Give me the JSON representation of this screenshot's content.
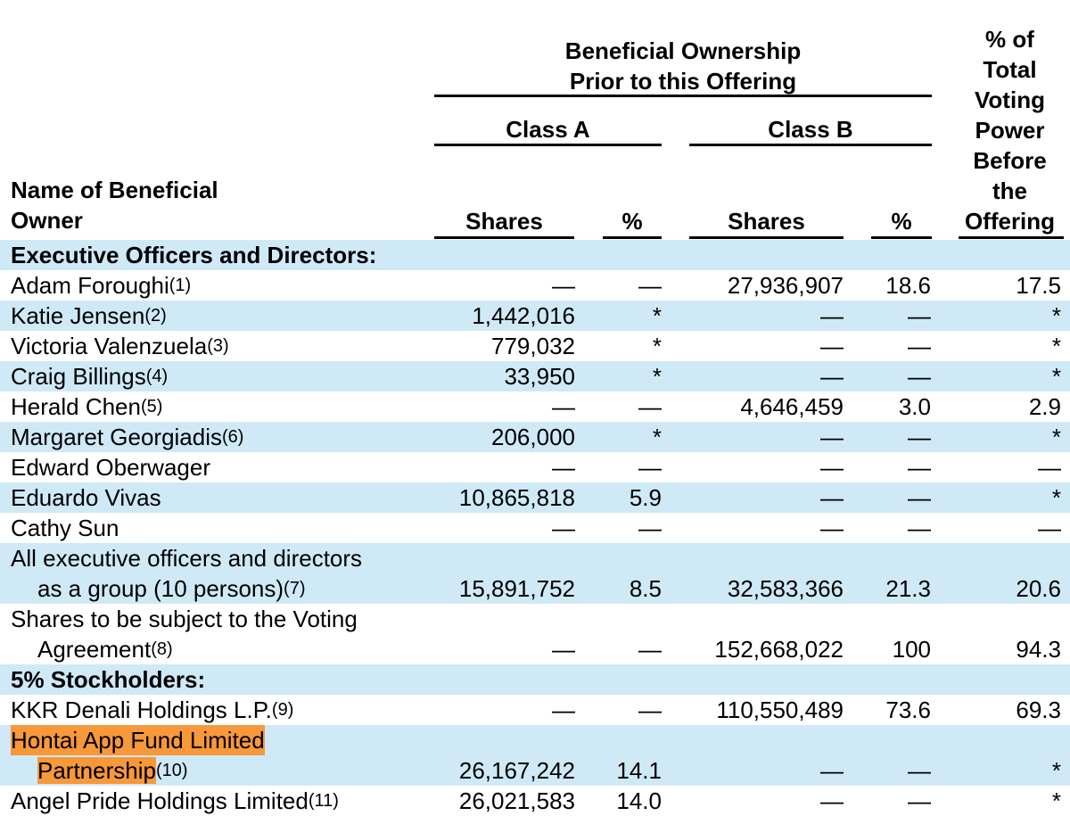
{
  "header": {
    "group_title_line1": "Beneficial Ownership",
    "group_title_line2": "Prior to this Offering",
    "class_a": "Class A",
    "class_b": "Class B",
    "name_col_line1": "Name of Beneficial",
    "name_col_line2": "Owner",
    "shares_a": "Shares",
    "pct_a": "%",
    "shares_b": "Shares",
    "pct_b": "%",
    "voting_lines": [
      "% of",
      "Total",
      "Voting",
      "Power",
      "Before",
      "the",
      "Offering"
    ]
  },
  "sections": {
    "executives": "Executive Officers and Directors:",
    "stockholders": "5% Stockholders:"
  },
  "rows": [
    {
      "name": "Adam Foroughi",
      "fn": "(1)",
      "a_shares": "—",
      "a_pct": "—",
      "b_shares": "27,936,907",
      "b_pct": "18.6",
      "voting": "17.5"
    },
    {
      "name": "Katie Jensen",
      "fn": "(2)",
      "a_shares": "1,442,016",
      "a_pct": "*",
      "b_shares": "—",
      "b_pct": "—",
      "voting": "*"
    },
    {
      "name": "Victoria Valenzuela",
      "fn": "(3)",
      "a_shares": "779,032",
      "a_pct": "*",
      "b_shares": "—",
      "b_pct": "—",
      "voting": "*"
    },
    {
      "name": "Craig Billings",
      "fn": "(4)",
      "a_shares": "33,950",
      "a_pct": "*",
      "b_shares": "—",
      "b_pct": "—",
      "voting": "*"
    },
    {
      "name": "Herald Chen",
      "fn": "(5)",
      "a_shares": "—",
      "a_pct": "—",
      "b_shares": "4,646,459",
      "b_pct": "3.0",
      "voting": "2.9"
    },
    {
      "name": "Margaret Georgiadis",
      "fn": "(6)",
      "a_shares": "206,000",
      "a_pct": "*",
      "b_shares": "—",
      "b_pct": "—",
      "voting": "*"
    },
    {
      "name": "Edward Oberwager",
      "fn": "",
      "a_shares": "—",
      "a_pct": "—",
      "b_shares": "—",
      "b_pct": "—",
      "voting": "—"
    },
    {
      "name": "Eduardo Vivas",
      "fn": "",
      "a_shares": "10,865,818",
      "a_pct": "5.9",
      "b_shares": "—",
      "b_pct": "—",
      "voting": "*"
    },
    {
      "name": "Cathy Sun",
      "fn": "",
      "a_shares": "—",
      "a_pct": "—",
      "b_shares": "—",
      "b_pct": "—",
      "voting": "—"
    },
    {
      "name1": "All executive officers and directors",
      "name2": "as a group (10 persons)",
      "fn": "(7)",
      "a_shares": "15,891,752",
      "a_pct": "8.5",
      "b_shares": "32,583,366",
      "b_pct": "21.3",
      "voting": "20.6"
    },
    {
      "name1": "Shares to be subject to the Voting",
      "name2": "Agreement",
      "fn": "(8)",
      "a_shares": "—",
      "a_pct": "—",
      "b_shares": "152,668,022",
      "b_pct": "100",
      "voting": "94.3"
    },
    {
      "name": "KKR Denali Holdings L.P.",
      "fn": "(9)",
      "a_shares": "—",
      "a_pct": "—",
      "b_shares": "110,550,489",
      "b_pct": "73.6",
      "voting": "69.3"
    },
    {
      "name1": "Hontai App Fund Limited",
      "name2": "Partnership",
      "fn": "(10)",
      "a_shares": "26,167,242",
      "a_pct": "14.1",
      "b_shares": "—",
      "b_pct": "—",
      "voting": "*"
    },
    {
      "name": "Angel Pride Holdings Limited",
      "fn": "(11)",
      "a_shares": "26,021,583",
      "a_pct": "14.0",
      "b_shares": "—",
      "b_pct": "—",
      "voting": "*"
    }
  ],
  "colors": {
    "row_shade": "#cfe9f7",
    "highlight": "#f7983a"
  }
}
